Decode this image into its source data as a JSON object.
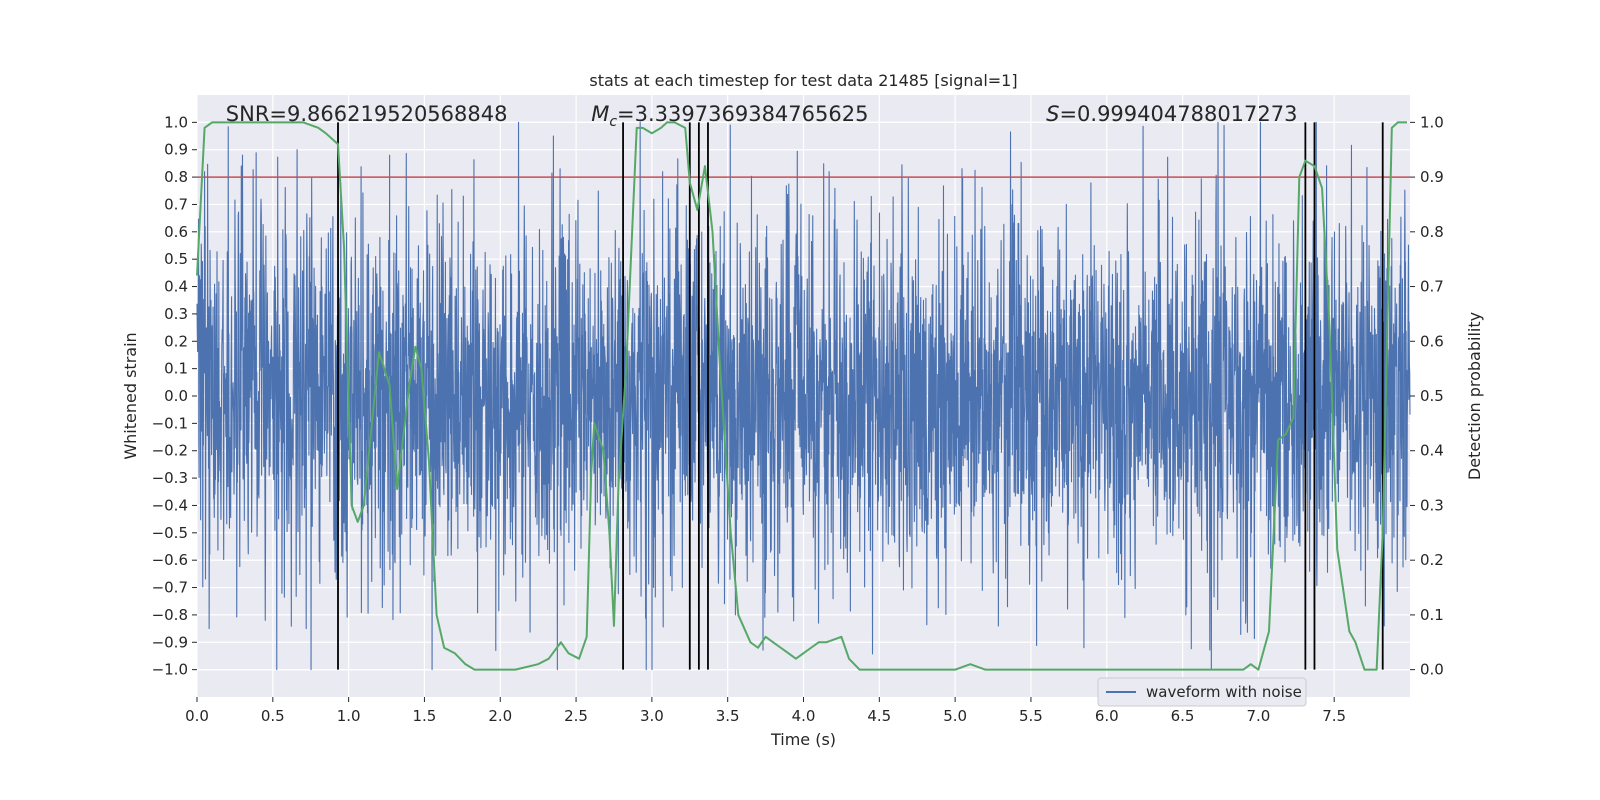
{
  "chart_data": {
    "type": "line",
    "title": "stats at each timestep for test data 21485 [signal=1]",
    "xlabel": "Time (s)",
    "ylabel": "Whitened strain",
    "y2label": "Detection probability",
    "xlim": [
      0,
      8
    ],
    "ylim": [
      -1.1,
      1.1
    ],
    "y2lim": [
      -0.05,
      1.05
    ],
    "x_ticks": [
      0.0,
      0.5,
      1.0,
      1.5,
      2.0,
      2.5,
      3.0,
      3.5,
      4.0,
      4.5,
      5.0,
      5.5,
      6.0,
      6.5,
      7.0,
      7.5
    ],
    "x_tick_labels": [
      "0.0",
      "0.5",
      "1.0",
      "1.5",
      "2.0",
      "2.5",
      "3.0",
      "3.5",
      "4.0",
      "4.5",
      "5.0",
      "5.5",
      "6.0",
      "6.5",
      "7.0",
      "7.5"
    ],
    "y_ticks": [
      1.0,
      0.9,
      0.8,
      0.7,
      0.6,
      0.5,
      0.4,
      0.3,
      0.2,
      0.1,
      0.0,
      -0.1,
      -0.2,
      -0.3,
      -0.4,
      -0.5,
      -0.6,
      -0.7,
      -0.8,
      -0.9,
      -1.0
    ],
    "y_tick_labels": [
      "1.0",
      "0.9",
      "0.8",
      "0.7",
      "0.6",
      "0.5",
      "0.4",
      "0.3",
      "0.2",
      "0.1",
      "0.0",
      "−0.1",
      "−0.2",
      "−0.3",
      "−0.4",
      "−0.5",
      "−0.6",
      "−0.7",
      "−0.8",
      "−0.9",
      "−1.0"
    ],
    "y2_ticks": [
      1.0,
      0.9,
      0.8,
      0.7,
      0.6,
      0.5,
      0.4,
      0.3,
      0.2,
      0.1,
      0.0
    ],
    "y2_tick_labels": [
      "1.0",
      "0.9",
      "0.8",
      "0.7",
      "0.6",
      "0.5",
      "0.4",
      "0.3",
      "0.2",
      "0.1",
      "0.0"
    ],
    "grid": true,
    "legend": {
      "position": "lower-right",
      "entries": [
        {
          "name": "waveform with noise",
          "color": "#4c72b0"
        }
      ]
    },
    "annotations": [
      {
        "text": "SNR=9.866219520568848",
        "x": 0.19
      },
      {
        "prefix": "M",
        "sub": "c",
        "text": "=3.3397369384765625",
        "x": 2.6
      },
      {
        "prefix": "S",
        "text": "=0.999404788017273",
        "x": 5.6
      }
    ],
    "threshold": {
      "value": 0.9,
      "axis": "y2",
      "color": "#c44e52"
    },
    "detection_times": [
      0.93,
      2.81,
      3.25,
      3.31,
      3.37,
      7.31,
      7.37,
      7.82
    ],
    "series": [
      {
        "name": "waveform with noise",
        "color": "#4c72b0",
        "axis": "y",
        "style": "noise",
        "rms": 0.33,
        "peaks": [
          {
            "x": 0.05,
            "y": 0.82
          },
          {
            "x": 0.3,
            "y": 0.88
          },
          {
            "x": 0.66,
            "y": 0.9
          },
          {
            "x": 1.27,
            "y": 0.88
          },
          {
            "x": 2.12,
            "y": 1.0
          },
          {
            "x": 2.35,
            "y": 0.95
          },
          {
            "x": 3.0,
            "y": 0.95
          },
          {
            "x": 4.17,
            "y": 0.82
          },
          {
            "x": 5.05,
            "y": 0.8
          },
          {
            "x": 7.83,
            "y": 0.9
          },
          {
            "x": 0.08,
            "y": -0.85
          },
          {
            "x": 0.45,
            "y": -0.82
          },
          {
            "x": 0.72,
            "y": -0.85
          },
          {
            "x": 1.97,
            "y": -0.93
          },
          {
            "x": 3.0,
            "y": -1.0
          },
          {
            "x": 3.55,
            "y": -0.8
          },
          {
            "x": 4.1,
            "y": -0.83
          },
          {
            "x": 5.85,
            "y": -0.92
          },
          {
            "x": 6.9,
            "y": -0.75
          },
          {
            "x": 7.83,
            "y": -0.84
          }
        ]
      },
      {
        "name": "detection probability",
        "color": "#55a868",
        "axis": "y2",
        "x": [
          0.0,
          0.05,
          0.1,
          0.2,
          0.3,
          0.4,
          0.5,
          0.6,
          0.7,
          0.8,
          0.85,
          0.93,
          0.97,
          1.02,
          1.06,
          1.1,
          1.2,
          1.27,
          1.32,
          1.4,
          1.44,
          1.48,
          1.53,
          1.58,
          1.63,
          1.7,
          1.77,
          1.83,
          1.9,
          2.0,
          2.1,
          2.25,
          2.32,
          2.4,
          2.45,
          2.52,
          2.57,
          2.6,
          2.62,
          2.68,
          2.72,
          2.75,
          2.78,
          2.83,
          2.9,
          2.94,
          3.0,
          3.06,
          3.1,
          3.15,
          3.22,
          3.25,
          3.3,
          3.35,
          3.4,
          3.45,
          3.52,
          3.57,
          3.65,
          3.7,
          3.75,
          3.8,
          3.85,
          3.9,
          3.95,
          4.0,
          4.05,
          4.1,
          4.15,
          4.25,
          4.3,
          4.37,
          4.45,
          4.55,
          4.7,
          4.85,
          5.0,
          5.1,
          5.2,
          5.4,
          5.6,
          5.8,
          6.0,
          6.2,
          6.4,
          6.6,
          6.8,
          6.85,
          6.9,
          6.95,
          7.0,
          7.07,
          7.13,
          7.18,
          7.23,
          7.27,
          7.31,
          7.37,
          7.42,
          7.47,
          7.52,
          7.6,
          7.64,
          7.7,
          7.78,
          7.82,
          7.88,
          7.92,
          7.98
        ],
        "y": [
          0.72,
          0.99,
          1.0,
          1.0,
          1.0,
          1.0,
          1.0,
          1.0,
          1.0,
          0.99,
          0.98,
          0.96,
          0.77,
          0.3,
          0.27,
          0.3,
          0.58,
          0.52,
          0.33,
          0.52,
          0.59,
          0.55,
          0.38,
          0.1,
          0.04,
          0.03,
          0.01,
          0.0,
          0.0,
          0.0,
          0.0,
          0.01,
          0.02,
          0.05,
          0.03,
          0.02,
          0.06,
          0.36,
          0.45,
          0.4,
          0.25,
          0.08,
          0.34,
          0.55,
          0.99,
          0.99,
          0.98,
          0.99,
          1.0,
          1.0,
          0.99,
          0.89,
          0.84,
          0.92,
          0.8,
          0.55,
          0.25,
          0.1,
          0.05,
          0.04,
          0.06,
          0.05,
          0.04,
          0.03,
          0.02,
          0.03,
          0.04,
          0.05,
          0.05,
          0.06,
          0.02,
          0.0,
          0.0,
          0.0,
          0.0,
          0.0,
          0.0,
          0.01,
          0.0,
          0.0,
          0.0,
          0.0,
          0.0,
          0.0,
          0.0,
          0.0,
          0.0,
          0.0,
          0.0,
          0.01,
          0.0,
          0.07,
          0.42,
          0.43,
          0.46,
          0.9,
          0.93,
          0.92,
          0.88,
          0.62,
          0.22,
          0.07,
          0.05,
          0.0,
          0.0,
          0.25,
          0.99,
          1.0,
          1.0
        ]
      }
    ]
  }
}
